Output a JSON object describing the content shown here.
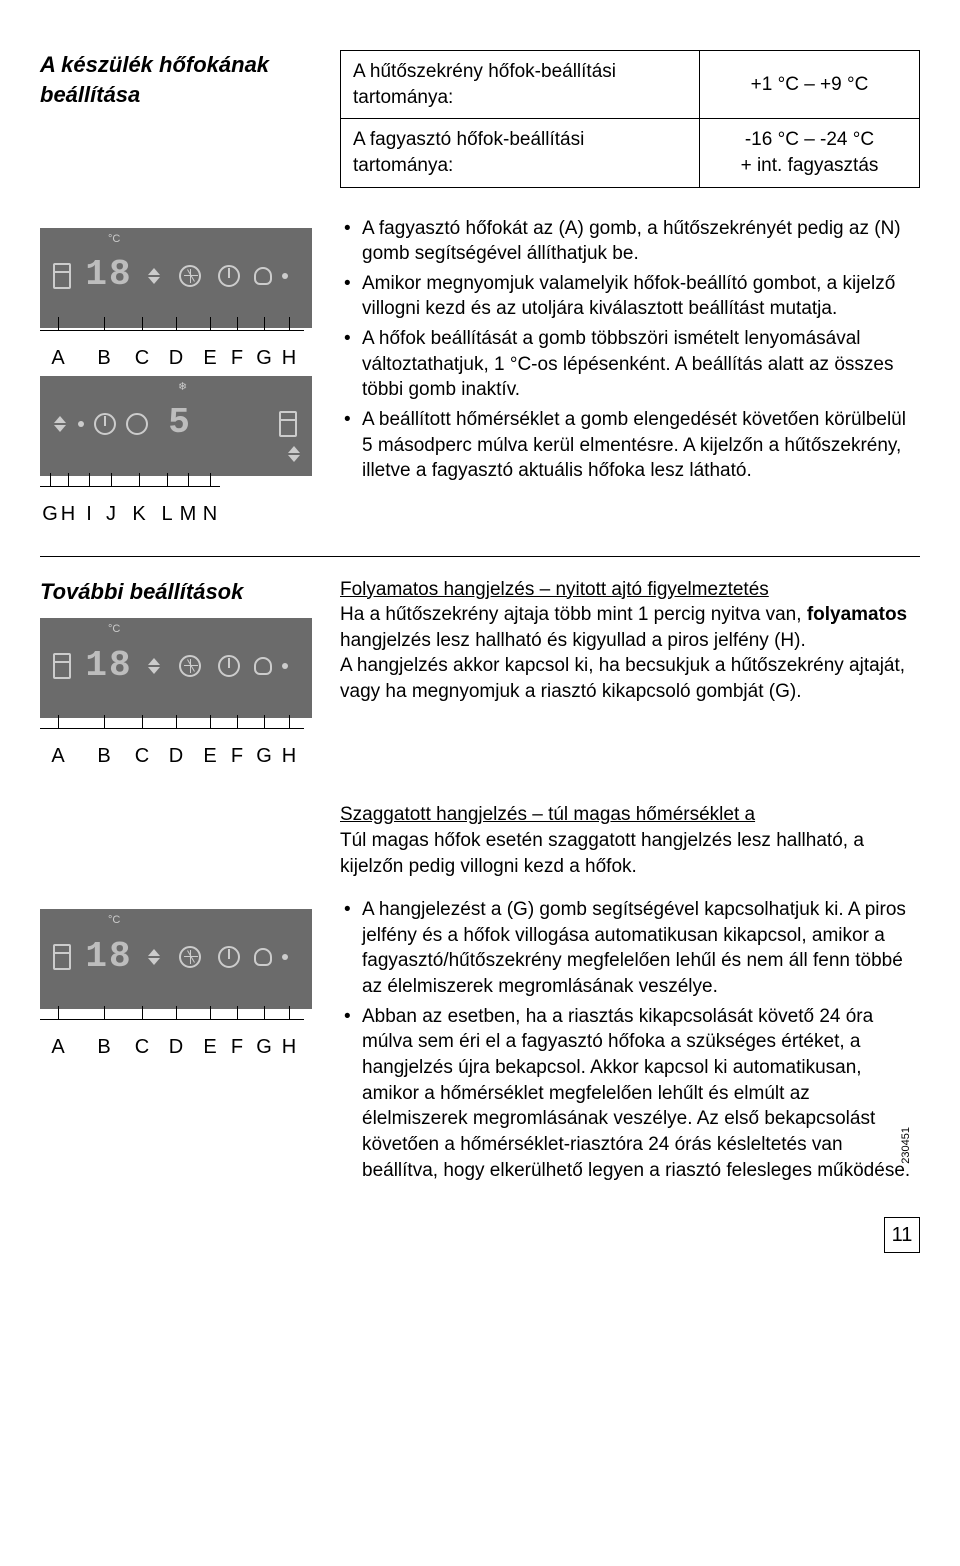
{
  "section1": {
    "heading": "A készülék hőfokának beállítása",
    "range_rows": [
      {
        "label": "A hűtőszekrény hőfok-beállítási tartománya:",
        "value": "+1 °C – +9 °C"
      },
      {
        "label": "A fagyasztó hőfok-beállítási tartománya:",
        "value": "-16 °C – -24 °C\n+ int. fagyasztás"
      }
    ],
    "panel1": {
      "display": "18",
      "unit": "°C",
      "labels": [
        "A",
        "B",
        "C",
        "D",
        "E",
        "F",
        "G",
        "H"
      ]
    },
    "panel2": {
      "display": "5",
      "snow": "❄",
      "labels": [
        "G",
        "H",
        "I",
        "J",
        "K",
        "L",
        "M",
        "N"
      ]
    },
    "bullets": [
      "A fagyasztó hőfokát az (A) gomb, a hűtőszekrényét pedig az (N) gomb segítségével állíthatjuk be.",
      "Amikor megnyomjuk valamelyik hőfok-beállító gombot, a kijelző villogni kezd és az utoljára kiválasztott beállítást mutatja.",
      "A hőfok beállítását a gomb többszöri ismételt lenyomásával változtathatjuk, 1 °C-os lépésenként. A beállítás alatt az összes többi gomb inaktív.",
      "A beállított hőmérséklet a gomb elengedését követően körülbelül 5 másodperc múlva kerül elmentésre. A kijelzőn a hűtőszekrény, illetve a fagyasztó aktuális hőfoka lesz látható."
    ]
  },
  "section2": {
    "heading": "További beállítások",
    "panel3": {
      "display": "18",
      "unit": "°C",
      "labels": [
        "A",
        "B",
        "C",
        "D",
        "E",
        "F",
        "G",
        "H"
      ]
    },
    "block1": {
      "title": "Folyamatos hangjelzés – nyitott ajtó figyelmeztetés",
      "body_prefix": "Ha a hűtőszekrény ajtaja több mint 1 percig nyitva van, ",
      "body_bold": "folyamatos",
      "body_suffix": " hangjelzés lesz hallható és kigyullad a piros jelfény (H).\nA hangjelzés akkor kapcsol ki, ha becsukjuk a hűtőszekrény ajtaját, vagy ha megnyomjuk a riasztó kikapcsoló gombját (G)."
    },
    "block2": {
      "title": "Szaggatott hangjelzés – túl magas hőmérséklet a",
      "body": "Túl magas hőfok esetén szaggatott hangjelzés lesz hallható, a kijelzőn pedig villogni kezd a hőfok."
    },
    "panel4": {
      "display": "18",
      "unit": "°C",
      "labels": [
        "A",
        "B",
        "C",
        "D",
        "E",
        "F",
        "G",
        "H"
      ]
    },
    "bullets2": [
      "A hangjelezést a (G) gomb segítségével kapcsolhatjuk ki. A piros jelfény és a hőfok villogása automatikusan kikapcsol, amikor a fagyasztó/hűtőszekrény megfelelően lehűl és nem áll fenn többé az élelmiszerek megromlásának veszélye.",
      "Abban az esetben, ha a riasztás kikapcsolását követő 24 óra múlva sem éri el a fagyasztó hőfoka a szükséges értéket, a hangjelzés újra bekapcsol. Akkor kapcsol ki automatikusan, amikor a hőmérséklet megfelelően lehűlt és elmúlt az élelmiszerek megromlásának veszélye. Az első bekapcsolást követően a hőmérséklet-riasztóra 24 órás késleltetés van beállítva, hogy elkerülhető legyen a riasztó felesleges működése."
    ]
  },
  "page_number": "11",
  "docref": "230451",
  "panel_label_widths": {
    "p1": [
      36,
      56,
      0,
      48,
      20,
      34,
      20,
      30,
      16,
      14
    ],
    "p2": [
      20,
      16,
      26,
      18,
      38,
      18,
      24,
      0,
      78,
      20
    ]
  }
}
